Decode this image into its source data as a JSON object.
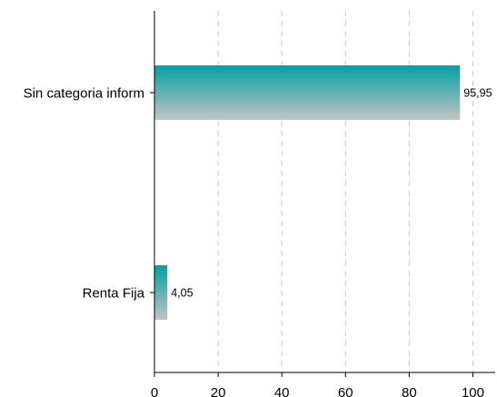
{
  "chart_data": {
    "type": "bar",
    "orientation": "horizontal",
    "categories": [
      "Sin categoria inform",
      "Renta  Fija"
    ],
    "values": [
      95.95,
      4.05
    ],
    "value_labels": [
      "95,95",
      "4,05"
    ],
    "xlim": [
      0,
      107
    ],
    "xticks": [
      0,
      20,
      40,
      60,
      80,
      100
    ],
    "xtick_labels": [
      "0",
      "20",
      "40",
      "60",
      "80",
      "100"
    ],
    "title": "",
    "xlabel": "",
    "ylabel": "",
    "grid": "vertical dashed",
    "legend": "none",
    "colors": {
      "bar_top": "#069ea4",
      "bar_bottom": "#c3c3c3",
      "grid": "#c8c8c8",
      "axis": "#000000"
    }
  }
}
